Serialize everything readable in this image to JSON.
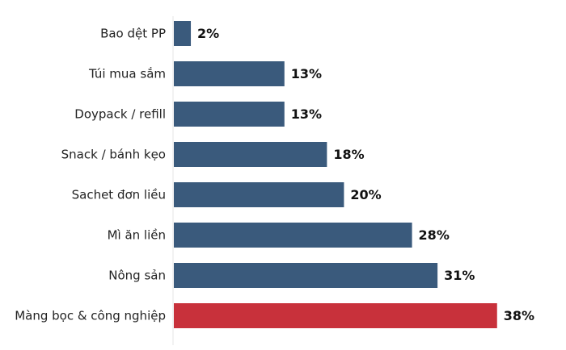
{
  "chart_data": {
    "type": "bar",
    "orientation": "horizontal",
    "categories": [
      "Bao dệt PP",
      "Túi mua sắm",
      "Doypack / refill",
      "Snack / bánh kẹo",
      "Sachet đơn liều",
      "Mì ăn liền",
      "Nông sản",
      "Màng bọc & công nghiệp"
    ],
    "values": [
      2,
      13,
      13,
      18,
      20,
      28,
      31,
      38
    ],
    "value_labels": [
      "2%",
      "13%",
      "13%",
      "18%",
      "20%",
      "28%",
      "31%",
      "38%"
    ],
    "unit": "%",
    "xlim": [
      0,
      38
    ],
    "grid": false,
    "legend": "none",
    "colors": {
      "default": "#3a5a7c",
      "highlight": "#c8313b",
      "highlight_label": "#c8313b",
      "label": "#111111"
    },
    "highlight_index": 7
  }
}
